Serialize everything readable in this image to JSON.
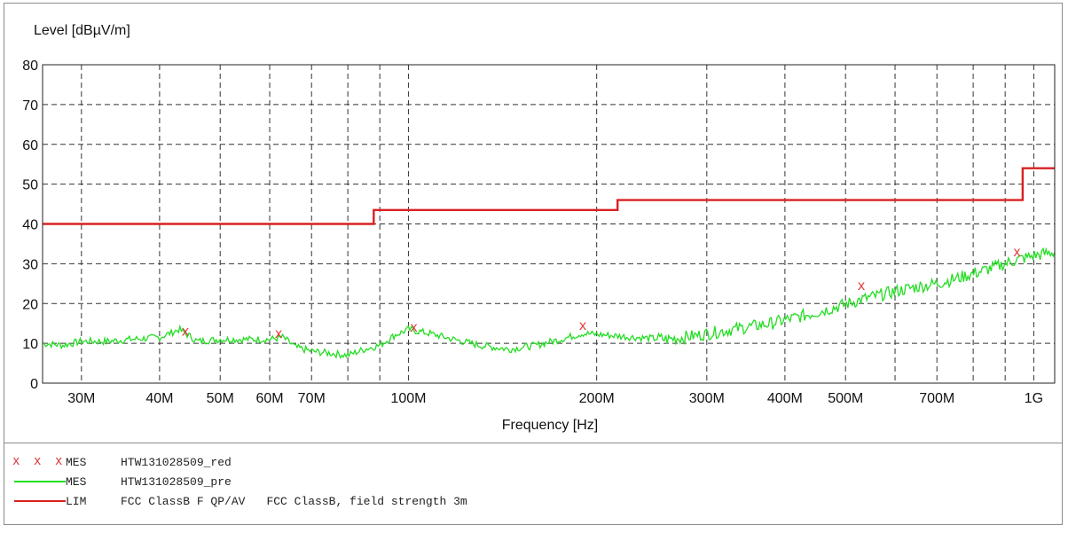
{
  "chart_data": {
    "type": "line",
    "ylabel": "Level [dBµV/m]",
    "xlabel": "Frequency [Hz]",
    "x_scale": "log",
    "xlim": [
      26000000,
      1080000000
    ],
    "ylim": [
      0,
      80
    ],
    "grid": true,
    "y_ticks": [
      0,
      10,
      20,
      30,
      40,
      50,
      60,
      70,
      80
    ],
    "x_ticks": [
      {
        "value": 30000000,
        "label": "30M"
      },
      {
        "value": 40000000,
        "label": "40M"
      },
      {
        "value": 50000000,
        "label": "50M"
      },
      {
        "value": 60000000,
        "label": "60M"
      },
      {
        "value": 70000000,
        "label": "70M"
      },
      {
        "value": 80000000,
        "label": ""
      },
      {
        "value": 90000000,
        "label": ""
      },
      {
        "value": 100000000,
        "label": "100M"
      },
      {
        "value": 200000000,
        "label": "200M"
      },
      {
        "value": 300000000,
        "label": "300M"
      },
      {
        "value": 400000000,
        "label": "400M"
      },
      {
        "value": 500000000,
        "label": "500M"
      },
      {
        "value": 600000000,
        "label": ""
      },
      {
        "value": 700000000,
        "label": "700M"
      },
      {
        "value": 800000000,
        "label": ""
      },
      {
        "value": 900000000,
        "label": ""
      },
      {
        "value": 1000000000,
        "label": "1G"
      }
    ],
    "series": [
      {
        "name": "HTW131028509_red",
        "kind": "markers",
        "color": "#e03c3c",
        "points": [
          [
            44000000,
            13.0
          ],
          [
            62000000,
            12.5
          ],
          [
            102000000,
            14.0
          ],
          [
            190000000,
            14.5
          ],
          [
            530000000,
            24.5
          ],
          [
            940000000,
            33.0
          ]
        ]
      },
      {
        "name": "HTW131028509_pre",
        "kind": "line",
        "color": "#22dd22",
        "points": [
          [
            26000000,
            10.0
          ],
          [
            28000000,
            9.5
          ],
          [
            30000000,
            10.5
          ],
          [
            33000000,
            10.5
          ],
          [
            36000000,
            11.0
          ],
          [
            40000000,
            11.5
          ],
          [
            43000000,
            13.5
          ],
          [
            46000000,
            10.5
          ],
          [
            50000000,
            11.0
          ],
          [
            55000000,
            11.0
          ],
          [
            60000000,
            11.0
          ],
          [
            63000000,
            11.5
          ],
          [
            66000000,
            9.0
          ],
          [
            70000000,
            8.0
          ],
          [
            75000000,
            7.5
          ],
          [
            80000000,
            7.0
          ],
          [
            85000000,
            8.5
          ],
          [
            90000000,
            9.5
          ],
          [
            95000000,
            12.0
          ],
          [
            100000000,
            13.5
          ],
          [
            108000000,
            12.5
          ],
          [
            118000000,
            11.0
          ],
          [
            130000000,
            9.5
          ],
          [
            145000000,
            8.5
          ],
          [
            160000000,
            9.5
          ],
          [
            175000000,
            11.0
          ],
          [
            190000000,
            12.5
          ],
          [
            210000000,
            12.0
          ],
          [
            230000000,
            11.5
          ],
          [
            260000000,
            11.0
          ],
          [
            290000000,
            12.0
          ],
          [
            330000000,
            13.5
          ],
          [
            380000000,
            15.0
          ],
          [
            430000000,
            17.0
          ],
          [
            480000000,
            19.0
          ],
          [
            530000000,
            21.0
          ],
          [
            580000000,
            22.5
          ],
          [
            640000000,
            24.0
          ],
          [
            700000000,
            25.0
          ],
          [
            760000000,
            26.5
          ],
          [
            820000000,
            28.0
          ],
          [
            880000000,
            29.5
          ],
          [
            940000000,
            31.0
          ],
          [
            1000000000,
            32.0
          ],
          [
            1080000000,
            33.0
          ]
        ]
      },
      {
        "name": "FCC ClassB F QP/AV",
        "kind": "step",
        "color": "#d92020",
        "points": [
          [
            26000000,
            40.0
          ],
          [
            88000000,
            40.0
          ],
          [
            88000000,
            43.5
          ],
          [
            216000000,
            43.5
          ],
          [
            216000000,
            46.0
          ],
          [
            960000000,
            46.0
          ],
          [
            960000000,
            54.0
          ],
          [
            1080000000,
            54.0
          ]
        ]
      }
    ]
  },
  "legend": [
    {
      "symbol": "x",
      "tag": "MES",
      "text": "HTW131028509_red",
      "extra": ""
    },
    {
      "symbol": "green-line",
      "tag": "MES",
      "text": "HTW131028509_pre",
      "extra": ""
    },
    {
      "symbol": "red-line",
      "tag": "LIM",
      "text": "FCC ClassB F QP/AV",
      "extra": "FCC ClassB, field strength 3m"
    }
  ]
}
